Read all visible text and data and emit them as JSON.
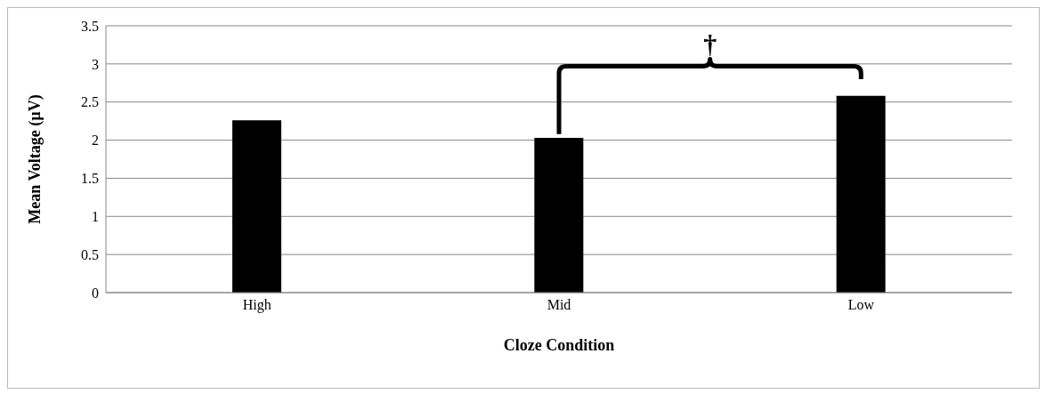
{
  "chart_data": {
    "type": "bar",
    "xlabel": "Cloze Condition",
    "ylabel": "Mean Voltage (µV)",
    "categories": [
      "High",
      "Mid",
      "Low"
    ],
    "values": [
      2.26,
      2.03,
      2.58
    ],
    "color": "#000000",
    "ylim": [
      0,
      3.5
    ],
    "yticks": [
      0,
      0.5,
      1,
      1.5,
      2,
      2.5,
      3,
      3.5
    ],
    "grid": "y",
    "annotations": [
      "†"
    ]
  }
}
